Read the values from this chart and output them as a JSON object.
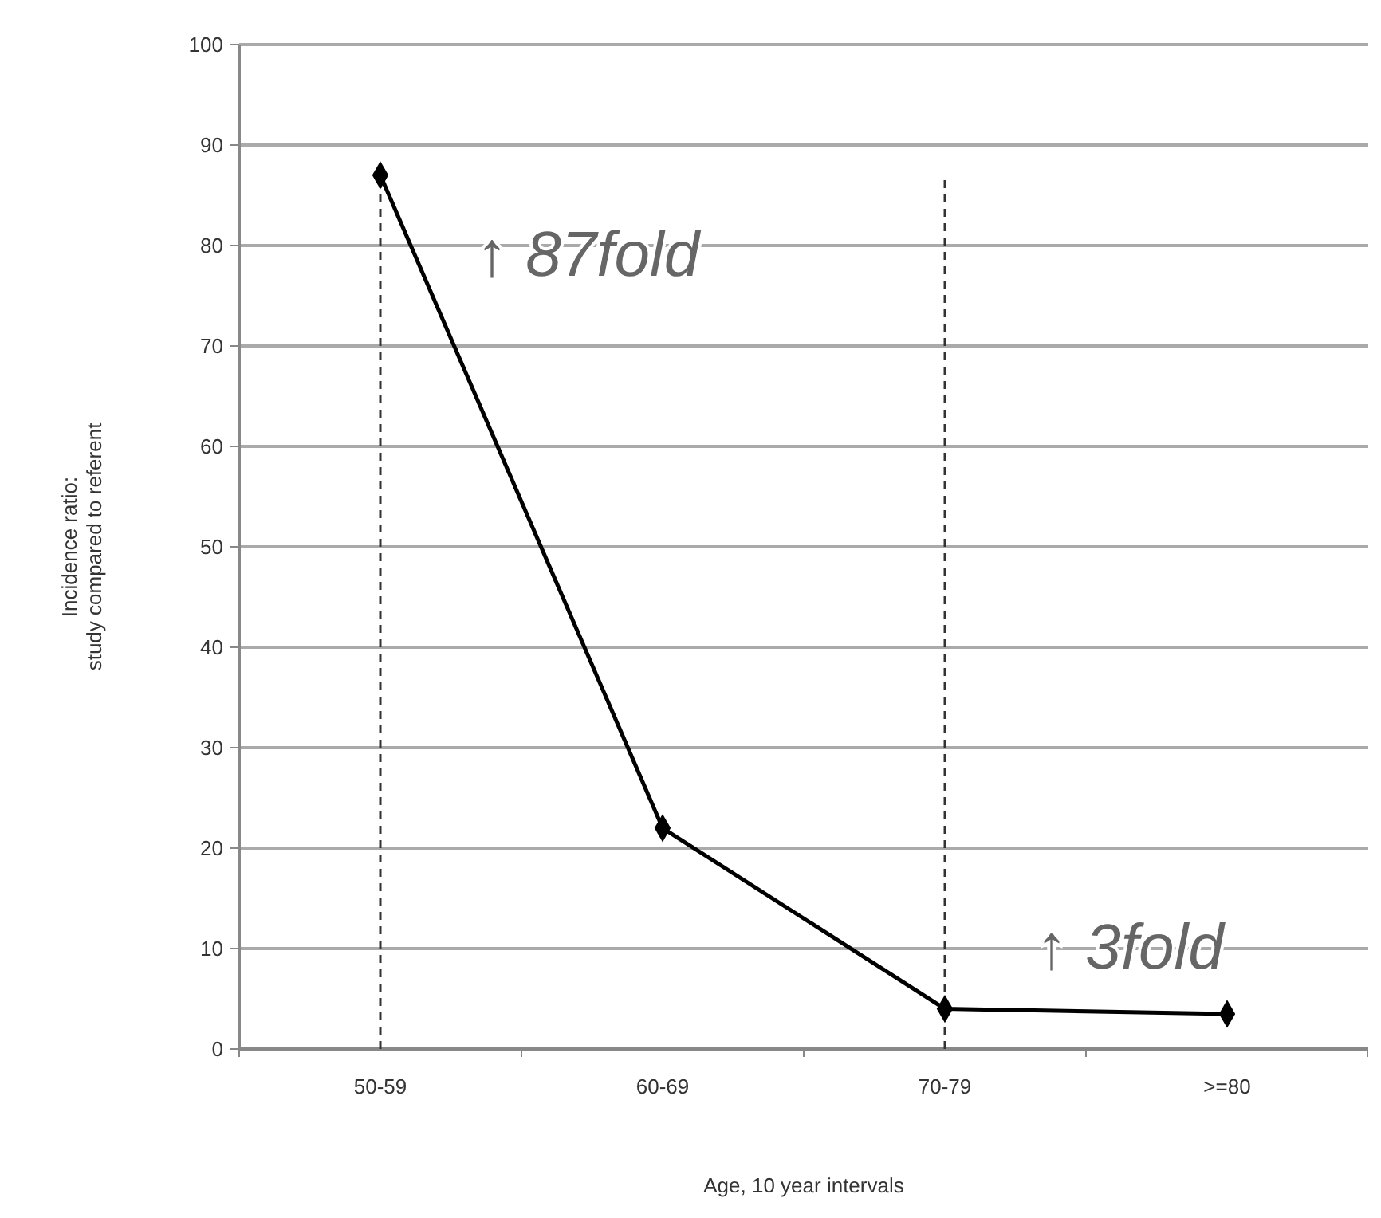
{
  "chart_data": {
    "type": "line",
    "xlabel": "Age, 10 year intervals",
    "ylabel": "Incidence ratio:\nstudy compared to referent",
    "categories": [
      "50-59",
      "60-69",
      "70-79",
      ">=80"
    ],
    "series": [
      {
        "color": "#000000",
        "values": [
          87,
          22,
          4,
          3.5
        ]
      }
    ],
    "ylim": [
      0,
      100
    ],
    "yticks": [
      0,
      10,
      20,
      30,
      40,
      50,
      60,
      70,
      80,
      90,
      100
    ],
    "grid": "y",
    "marker": "diamond",
    "line_style": "solid",
    "ref_lines": [
      {
        "axis": "x",
        "value": "50-59",
        "line_style": "dashed",
        "color": "#333333"
      },
      {
        "axis": "x",
        "value": "70-79",
        "line_style": "dashed",
        "color": "#333333"
      }
    ],
    "annotations": [
      "↑ 87fold",
      "↑ 3fold"
    ]
  }
}
